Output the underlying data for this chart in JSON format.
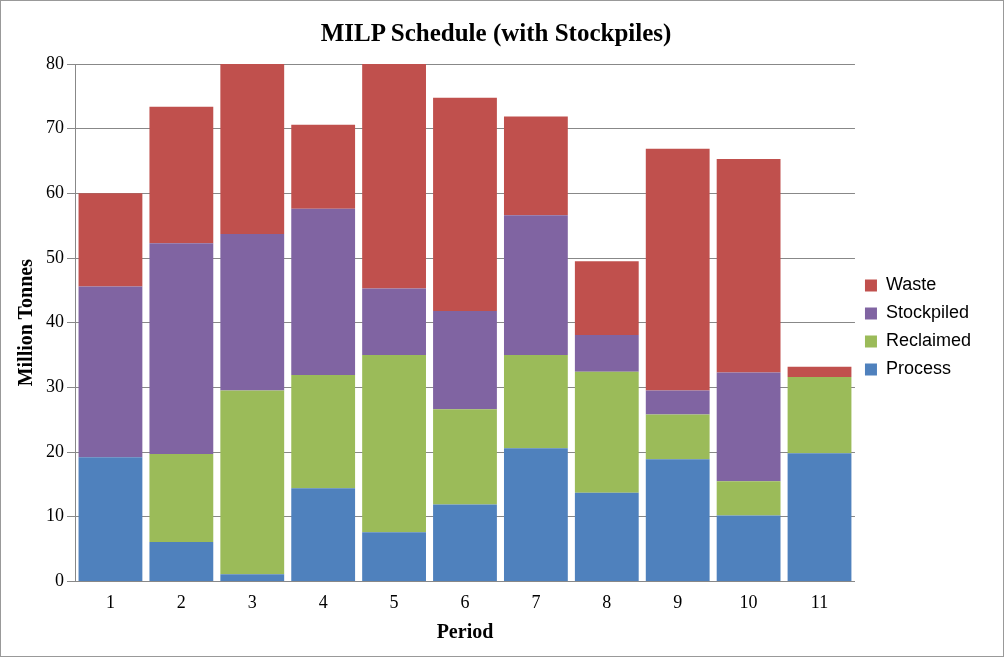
{
  "chart_data": {
    "type": "bar",
    "title": "MILP Schedule (with Stockpiles)",
    "xlabel": "Period",
    "ylabel": "Million Tonnes",
    "categories": [
      "1",
      "2",
      "3",
      "4",
      "5",
      "6",
      "7",
      "8",
      "9",
      "10",
      "11"
    ],
    "stacked": true,
    "series": [
      {
        "name": "Process",
        "color": "#4f81bd",
        "values": [
          19.2,
          6.1,
          1.1,
          14.4,
          7.6,
          11.9,
          20.6,
          13.7,
          18.9,
          10.2,
          19.8
        ]
      },
      {
        "name": "Reclaimed",
        "color": "#9bbb59",
        "values": [
          0,
          13.6,
          28.4,
          17.5,
          27.4,
          14.7,
          14.4,
          18.7,
          6.9,
          5.3,
          11.8
        ]
      },
      {
        "name": "Stockpiled",
        "color": "#8064a2",
        "values": [
          26.4,
          32.6,
          24.2,
          25.7,
          10.3,
          15.2,
          21.6,
          5.7,
          3.7,
          16.8,
          0
        ]
      },
      {
        "name": "Waste",
        "color": "#c0504d",
        "values": [
          14.4,
          21.1,
          26.3,
          13.0,
          34.7,
          33.0,
          15.3,
          11.4,
          37.4,
          33.0,
          1.6
        ]
      }
    ],
    "ylim": [
      0,
      80
    ],
    "yticks": [
      0,
      10,
      20,
      30,
      40,
      50,
      60,
      70,
      80
    ],
    "grid": "y",
    "legend": "right"
  }
}
